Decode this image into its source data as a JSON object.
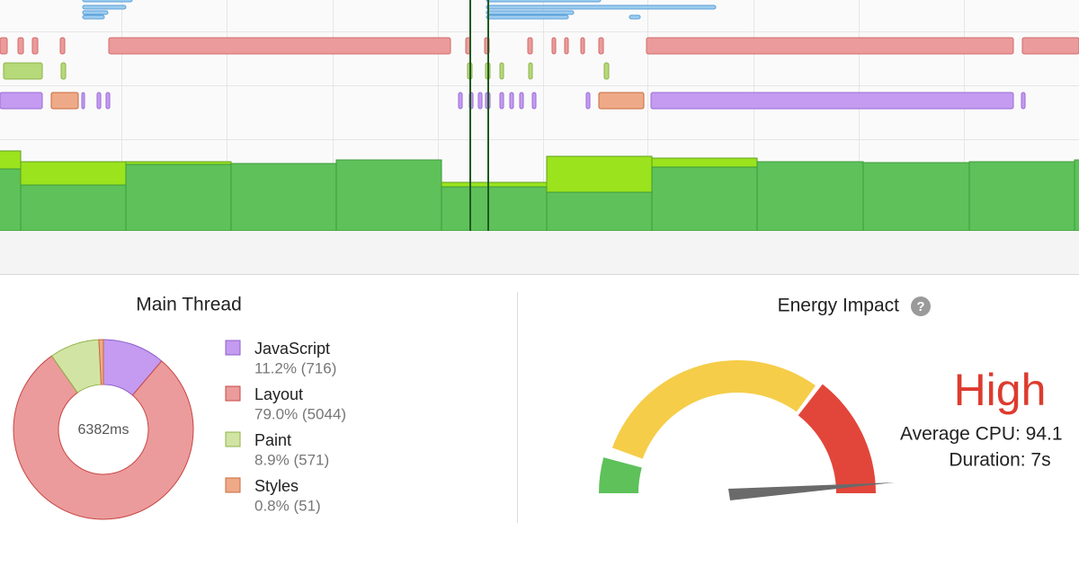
{
  "main_thread": {
    "title": "Main Thread",
    "total_label": "6382ms",
    "items": [
      {
        "name": "JavaScript",
        "label": "11.2% (716)",
        "value": 716,
        "color": "#c49bf0",
        "stroke": "#8e5fc9"
      },
      {
        "name": "Layout",
        "label": "79.0% (5044)",
        "value": 5044,
        "color": "#eb9b9b",
        "stroke": "#c94545"
      },
      {
        "name": "Paint",
        "label": "8.9% (571)",
        "value": 571,
        "color": "#d2e4a3",
        "stroke": "#8fb24a"
      },
      {
        "name": "Styles",
        "label": "0.8% (51)",
        "value": 51,
        "color": "#eeaa88",
        "stroke": "#c96a3c"
      }
    ]
  },
  "energy_impact": {
    "title": "Energy Impact",
    "help": "?",
    "rating": "High",
    "average_cpu": "Average CPU: 94.1",
    "duration": "Duration: 7s"
  }
}
